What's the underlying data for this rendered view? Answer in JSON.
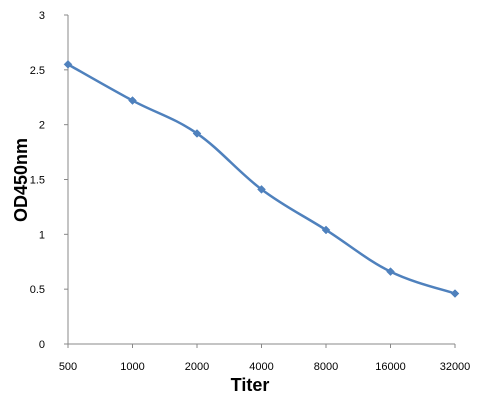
{
  "chart_data": {
    "type": "line",
    "title": "",
    "xlabel": "Titer",
    "ylabel": "OD450nm",
    "categories": [
      "500",
      "1000",
      "2000",
      "4000",
      "8000",
      "16000",
      "32000"
    ],
    "series": [
      {
        "values": [
          2.55,
          2.22,
          1.92,
          1.41,
          1.04,
          0.66,
          0.46
        ]
      }
    ],
    "ylim": [
      0,
      3
    ],
    "yticks": [
      "0",
      "0.5",
      "1",
      "1.5",
      "2",
      "2.5",
      "3"
    ],
    "grid": false,
    "legend": "none",
    "line_color": "#4f81bd",
    "marker": "diamond"
  }
}
